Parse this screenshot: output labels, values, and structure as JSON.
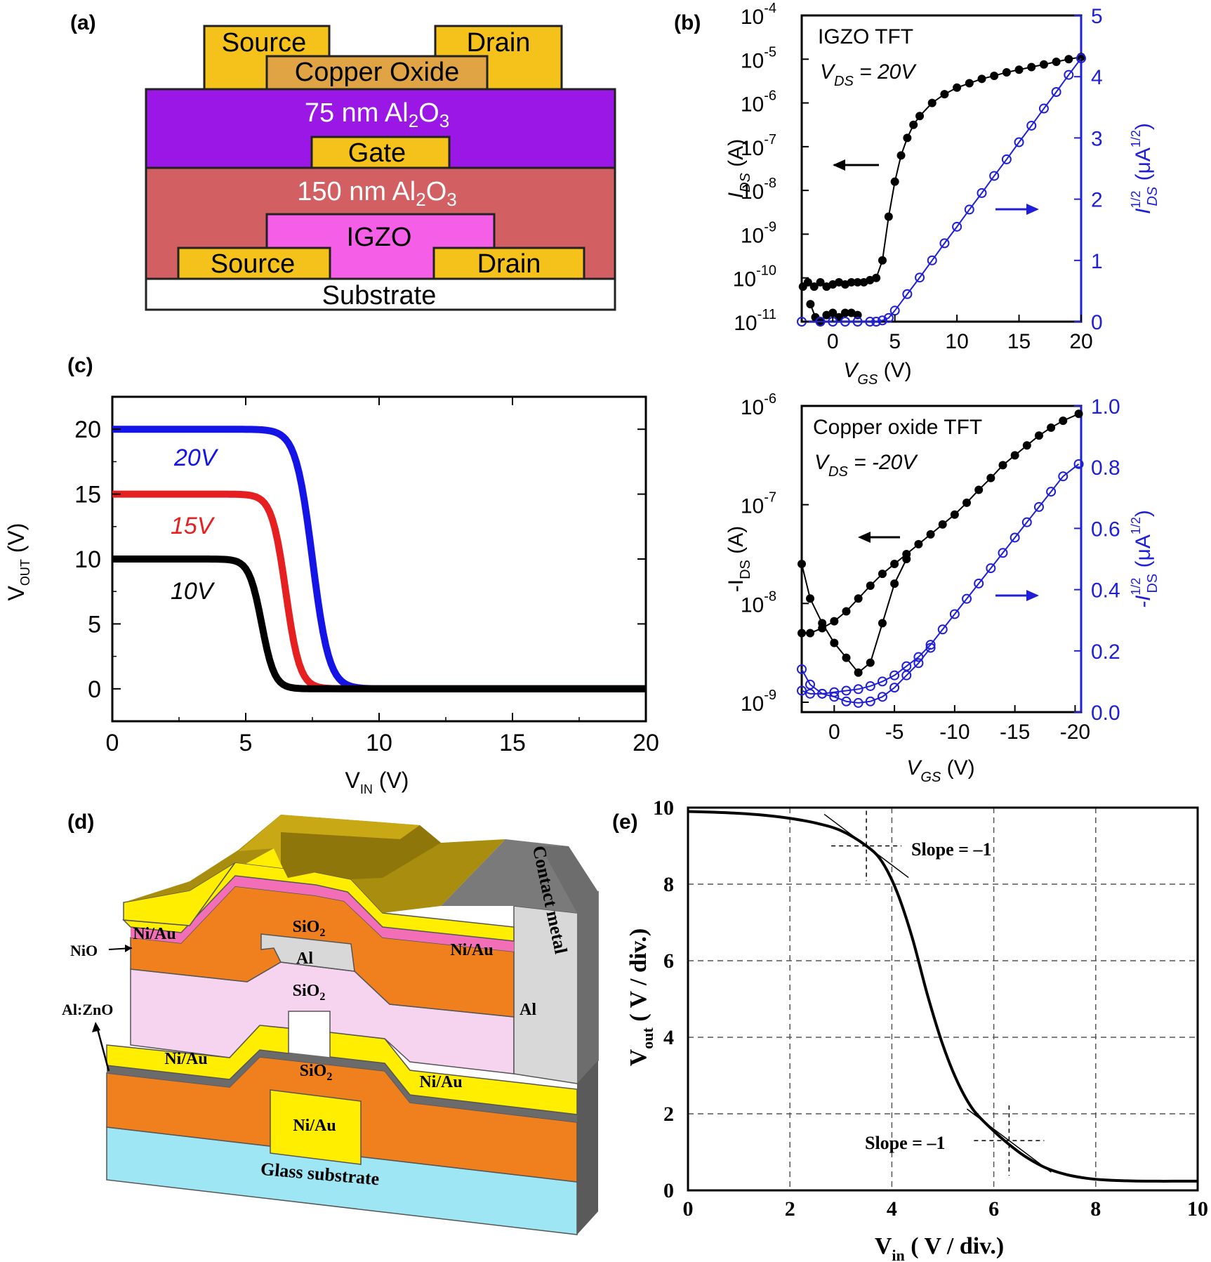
{
  "panels": {
    "a": {
      "label": "(a)",
      "layers": {
        "top_source": "Source",
        "top_drain": "Drain",
        "copper_oxide": "Copper Oxide",
        "al2o3_75": "75 nm Al",
        "al2o3_75_sub": "2",
        "al2o3_75_o": "O",
        "al2o3_75_sub2": "3",
        "gate": "Gate",
        "al2o3_150": "150 nm Al",
        "al2o3_150_sub": "2",
        "al2o3_150_o": "O",
        "al2o3_150_sub2": "3",
        "igzo": "IGZO",
        "bottom_source": "Source",
        "bottom_drain": "Drain",
        "substrate": "Substrate"
      },
      "colors": {
        "metal": "#f5c21b",
        "copper_oxide": "#e0a445",
        "al2o3_75": "#9a17e6",
        "al2o3_150": "#d25f62",
        "igzo": "#f55fe8",
        "substrate": "#ffffff"
      }
    },
    "b": {
      "label": "(b)"
    },
    "c": {
      "label": "(c)"
    },
    "d": {
      "label": "(d)",
      "labels": {
        "sio2_top": "SiO",
        "sio2_top_sub": "2",
        "niau_left_top": "Ni/Au",
        "niau_right_top": "Ni/Au",
        "nio": "NiO",
        "al_gate": "Al",
        "sio2_mid": "SiO",
        "sio2_mid_sub": "2",
        "al_right": "Al",
        "contact_metal": "Contact metal",
        "al_zno": "Al:ZnO",
        "niau_left_bottom": "Ni/Au",
        "sio2_bottom": "SiO",
        "sio2_bottom_sub": "2",
        "niau_right_bottom": "Ni/Au",
        "niau_gate": "Ni/Au",
        "glass": "Glass substrate"
      }
    },
    "e": {
      "label": "(e)"
    }
  },
  "chart_data": [
    {
      "id": "b_top",
      "type": "scatter",
      "title": "IGZO TFT",
      "annotation": {
        "v": "V",
        "sub": "DS",
        "rest": " = 20V"
      },
      "xlabel": {
        "v": "V",
        "sub": "GS",
        "rest": " (V)"
      },
      "ylabel_left": {
        "v": "I",
        "sub": "DS",
        "rest": " (A)"
      },
      "ylabel_right": {
        "v": "I",
        "sup": "1/2",
        "sub": "DS",
        "rest": " (μA",
        "rest_sup": "1/2",
        "close": ")"
      },
      "x_ticks": [
        "0",
        "5",
        "10",
        "15",
        "20"
      ],
      "x_tick_values": [
        0,
        5,
        10,
        15,
        20
      ],
      "xlim": [
        -2.5,
        20
      ],
      "y_left_scale": "log",
      "y_left_ticks": [
        {
          "base": "10",
          "exp": "-4"
        },
        {
          "base": "10",
          "exp": "-5"
        },
        {
          "base": "10",
          "exp": "-6"
        },
        {
          "base": "10",
          "exp": "-7"
        },
        {
          "base": "10",
          "exp": "-8"
        },
        {
          "base": "10",
          "exp": "-9"
        },
        {
          "base": "10",
          "exp": "-10"
        },
        {
          "base": "10",
          "exp": "-11"
        }
      ],
      "y_left_tick_exps": [
        -4,
        -5,
        -6,
        -7,
        -8,
        -9,
        -10,
        -11
      ],
      "y_left_lim_exp": [
        -11,
        -4
      ],
      "y_right_ticks": [
        "5",
        "4",
        "3",
        "2",
        "1",
        "0"
      ],
      "y_right_tick_values": [
        5,
        4,
        3,
        2,
        1,
        0
      ],
      "y_right_lim": [
        0,
        5
      ],
      "series": [
        {
          "axis": "left",
          "color": "#000000",
          "marker": "filled-circle",
          "x": [
            -2.4,
            -2,
            -1.5,
            -1,
            -0.5,
            0,
            0.5,
            1,
            1.5,
            2,
            2.5,
            3,
            3.5,
            4,
            4.5,
            5,
            5.5,
            6,
            6.5,
            7,
            8,
            9,
            10,
            11,
            12,
            13,
            14,
            15,
            16,
            17,
            18,
            19,
            20
          ],
          "y_exp": [
            -10.2,
            -10.1,
            -10.2,
            -10.1,
            -10.2,
            -10.15,
            -10.1,
            -10.15,
            -10.1,
            -10.1,
            -10.1,
            -10.05,
            -10.0,
            -9.6,
            -8.6,
            -7.8,
            -7.2,
            -6.8,
            -6.5,
            -6.3,
            -6.0,
            -5.8,
            -5.65,
            -5.55,
            -5.45,
            -5.38,
            -5.3,
            -5.24,
            -5.18,
            -5.12,
            -5.06,
            -5.0,
            -4.95
          ]
        },
        {
          "axis": "left",
          "color": "#000000",
          "marker": "filled-circle",
          "x": [
            -1.8,
            -1.4,
            -1,
            -0.5,
            0,
            0.5,
            1,
            1.5,
            2
          ],
          "y_exp": [
            -10.6,
            -10.9,
            -11.0,
            -10.85,
            -10.8,
            -10.9,
            -10.8,
            -10.8,
            -10.85
          ]
        },
        {
          "axis": "right",
          "color": "#1f1fd6",
          "marker": "open-circle",
          "x": [
            -2.5,
            -1,
            0,
            1,
            2,
            3,
            3.5,
            4,
            4.5,
            5,
            6,
            7,
            8,
            9,
            10,
            11,
            12,
            13,
            14,
            15,
            16,
            17,
            18,
            19,
            20
          ],
          "y": [
            0,
            0,
            0,
            0,
            0,
            0,
            0,
            0.02,
            0.06,
            0.18,
            0.45,
            0.72,
            1.0,
            1.28,
            1.55,
            1.83,
            2.1,
            2.38,
            2.65,
            2.93,
            3.2,
            3.48,
            3.75,
            4.03,
            4.3
          ]
        }
      ]
    },
    {
      "id": "b_bottom",
      "type": "scatter",
      "title": "Copper oxide TFT",
      "annotation": {
        "v": "V",
        "sub": "DS",
        "rest": " = -20V"
      },
      "xlabel": {
        "v": "V",
        "sub": "GS",
        "rest": " (V)"
      },
      "ylabel_left": {
        "v": "-I",
        "sub": "DS",
        "rest": " (A)"
      },
      "ylabel_right": {
        "v": "-I",
        "sup": "1/2",
        "sub": "DS",
        "rest": " (μA",
        "rest_sup": "1/2",
        "close": ")"
      },
      "x_ticks": [
        "0",
        "-5",
        "-10",
        "-15",
        "-20"
      ],
      "x_tick_values": [
        0,
        -5,
        -10,
        -15,
        -20
      ],
      "xlim": [
        2.7,
        -20.5
      ],
      "y_left_scale": "log",
      "y_left_ticks": [
        {
          "base": "10",
          "exp": "-6"
        },
        {
          "base": "10",
          "exp": "-7"
        },
        {
          "base": "10",
          "exp": "-8"
        },
        {
          "base": "10",
          "exp": "-9"
        }
      ],
      "y_left_tick_exps": [
        -6,
        -7,
        -8,
        -9
      ],
      "y_left_lim_exp": [
        -9.1,
        -6
      ],
      "y_right_ticks": [
        "1.0",
        "0.8",
        "0.6",
        "0.4",
        "0.2",
        "0.0"
      ],
      "y_right_tick_values": [
        1.0,
        0.8,
        0.6,
        0.4,
        0.2,
        0.0
      ],
      "y_right_lim": [
        0,
        1.0
      ],
      "series": [
        {
          "axis": "left",
          "color": "#000000",
          "marker": "filled-circle",
          "x": [
            2.7,
            2,
            1,
            0,
            -1,
            -2,
            -3,
            -4,
            -5,
            -6,
            -7,
            -8,
            -9,
            -10,
            -11,
            -12,
            -13,
            -14,
            -15,
            -16,
            -17,
            -18,
            -19,
            -20.3
          ],
          "y_exp": [
            -8.3,
            -8.3,
            -8.25,
            -8.18,
            -8.08,
            -7.95,
            -7.82,
            -7.7,
            -7.6,
            -7.5,
            -7.4,
            -7.3,
            -7.2,
            -7.1,
            -6.98,
            -6.85,
            -6.73,
            -6.6,
            -6.5,
            -6.4,
            -6.3,
            -6.22,
            -6.15,
            -6.08
          ]
        },
        {
          "axis": "left",
          "color": "#000000",
          "marker": "filled-circle",
          "x": [
            2.7,
            2,
            1,
            0,
            -1,
            -2,
            -3,
            -4,
            -5,
            -6
          ],
          "y_exp": [
            -7.6,
            -7.95,
            -8.2,
            -8.4,
            -8.55,
            -8.7,
            -8.6,
            -8.2,
            -7.8,
            -7.55
          ]
        },
        {
          "axis": "right",
          "color": "#1f1fd6",
          "marker": "open-circle",
          "x": [
            2.7,
            2,
            1,
            0,
            -1,
            -2,
            -3,
            -4,
            -5,
            -6,
            -7,
            -8,
            -9,
            -10,
            -11,
            -12,
            -13,
            -14,
            -15,
            -16,
            -17,
            -18,
            -19,
            -20.3
          ],
          "y": [
            0.07,
            0.06,
            0.06,
            0.065,
            0.07,
            0.075,
            0.085,
            0.1,
            0.12,
            0.15,
            0.18,
            0.22,
            0.27,
            0.32,
            0.37,
            0.42,
            0.47,
            0.52,
            0.57,
            0.62,
            0.67,
            0.72,
            0.77,
            0.81
          ]
        },
        {
          "axis": "right",
          "color": "#1f1fd6",
          "marker": "open-circle",
          "x": [
            2.7,
            2,
            1,
            0,
            -1,
            -2,
            -3,
            -4,
            -5,
            -6,
            -7,
            -8
          ],
          "y": [
            0.14,
            0.09,
            0.06,
            0.05,
            0.035,
            0.03,
            0.035,
            0.05,
            0.08,
            0.12,
            0.16,
            0.21
          ]
        }
      ]
    },
    {
      "id": "c",
      "type": "line",
      "xlabel": {
        "v": "V",
        "sub": "IN",
        "rest": " (V)"
      },
      "ylabel": {
        "v": "V",
        "sub": "OUT",
        "rest": " (V)"
      },
      "x_ticks": [
        "0",
        "5",
        "10",
        "15",
        "20"
      ],
      "x_tick_values": [
        0,
        5,
        10,
        15,
        20
      ],
      "xlim": [
        0,
        20
      ],
      "y_ticks": [
        "20",
        "15",
        "10",
        "5",
        "0"
      ],
      "y_tick_values": [
        20,
        15,
        10,
        5,
        0
      ],
      "ylim": [
        -2.5,
        22.5
      ],
      "series": [
        {
          "name": "20V",
          "color": "#1414e6",
          "vdd": 20,
          "vm": 7.5,
          "k": 3.2
        },
        {
          "name": "15V",
          "color": "#e62020",
          "vdd": 15,
          "vm": 6.5,
          "k": 3.8
        },
        {
          "name": "10V",
          "color": "#000000",
          "vdd": 10,
          "vm": 5.6,
          "k": 4.2
        }
      ]
    },
    {
      "id": "e",
      "type": "line",
      "xlabel": {
        "v": "V",
        "sub": "in",
        "rest": " ( V / div.)"
      },
      "ylabel": {
        "v": "V",
        "sub": "out",
        "rest": " ( V / div.)"
      },
      "x_ticks": [
        "0",
        "2",
        "4",
        "6",
        "8",
        "10"
      ],
      "x_tick_values": [
        0,
        2,
        4,
        6,
        8,
        10
      ],
      "xlim": [
        0,
        10
      ],
      "y_ticks": [
        "10",
        "8",
        "6",
        "4",
        "2",
        "0"
      ],
      "y_tick_values": [
        10,
        8,
        6,
        4,
        2,
        0
      ],
      "ylim": [
        0,
        10
      ],
      "grid": true,
      "curve": {
        "x": [
          0,
          0.5,
          1,
          1.5,
          2,
          2.5,
          3,
          3.5,
          3.8,
          4.1,
          4.4,
          4.7,
          5,
          5.3,
          5.6,
          6,
          6.3,
          6.6,
          7,
          7.4,
          7.8,
          8.2,
          8.6,
          9,
          9.5,
          10
        ],
        "y": [
          9.9,
          9.88,
          9.85,
          9.8,
          9.72,
          9.6,
          9.4,
          9.0,
          8.6,
          7.8,
          6.6,
          5.1,
          3.8,
          2.8,
          2.1,
          1.55,
          1.2,
          0.9,
          0.6,
          0.42,
          0.32,
          0.27,
          0.25,
          0.24,
          0.24,
          0.24
        ]
      },
      "annotations": [
        {
          "text": "Slope = –1",
          "point": [
            3.5,
            9.0
          ]
        },
        {
          "text": "Slope = –1",
          "point": [
            6.3,
            1.3
          ]
        }
      ]
    }
  ]
}
